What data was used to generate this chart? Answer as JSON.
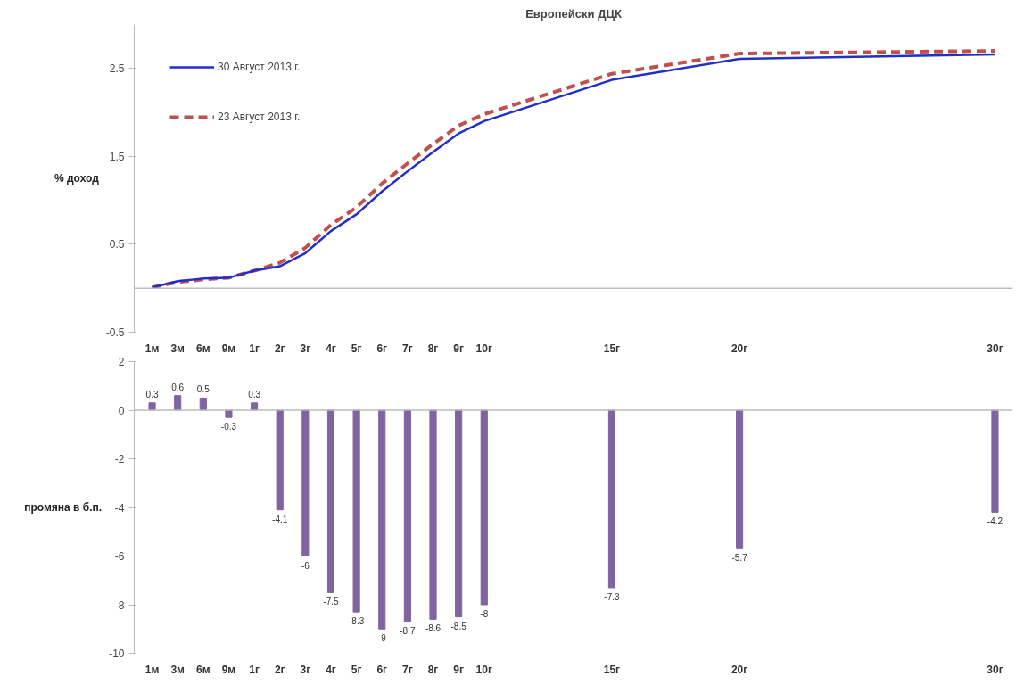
{
  "chart_data": [
    {
      "type": "line",
      "title": "Европейски ДЦК",
      "ylabel": "% доход",
      "categories": [
        "1м",
        "3м",
        "6м",
        "9м",
        "1г",
        "2г",
        "3г",
        "4г",
        "5г",
        "6г",
        "7г",
        "8г",
        "9г",
        "10г",
        null,
        null,
        null,
        null,
        "15г",
        null,
        null,
        null,
        null,
        "20г",
        null,
        null,
        null,
        null,
        null,
        null,
        null,
        null,
        null,
        "30г"
      ],
      "series": [
        {
          "name": "30 Август 2013 г.",
          "color": "#1f2fc8",
          "line_style": "solid",
          "values": [
            0.01,
            0.08,
            0.11,
            0.12,
            0.2,
            0.25,
            0.4,
            0.65,
            0.84,
            1.1,
            1.33,
            1.55,
            1.76,
            1.9,
            null,
            null,
            null,
            null,
            2.37,
            null,
            null,
            null,
            null,
            2.61,
            null,
            null,
            null,
            null,
            null,
            null,
            null,
            null,
            null,
            2.66
          ]
        },
        {
          "name": "23 Август 2013 г.",
          "color": "#c0504d",
          "line_style": "dashed",
          "values": [
            0.01,
            0.07,
            0.1,
            0.12,
            0.2,
            0.29,
            0.46,
            0.72,
            0.92,
            1.19,
            1.42,
            1.64,
            1.85,
            1.98,
            null,
            null,
            null,
            null,
            2.44,
            null,
            null,
            null,
            null,
            2.67,
            null,
            null,
            null,
            null,
            null,
            null,
            null,
            null,
            null,
            2.7
          ]
        }
      ],
      "ylim": [
        -0.5,
        3.0
      ],
      "yticks": [
        -0.5,
        0.5,
        1.5,
        2.5
      ],
      "legend": "top left",
      "ref_lines": [
        {
          "axis": "y",
          "value": 0
        }
      ]
    },
    {
      "type": "bar",
      "ylabel": "промяна в б.п.",
      "categories": [
        "1м",
        "3м",
        "6м",
        "9м",
        "1г",
        "2г",
        "3г",
        "4г",
        "5г",
        "6г",
        "7г",
        "8г",
        "9г",
        "10г",
        null,
        null,
        null,
        null,
        "15г",
        null,
        null,
        null,
        null,
        "20г",
        null,
        null,
        null,
        null,
        null,
        null,
        null,
        null,
        null,
        "30г"
      ],
      "values": [
        0.3,
        0.6,
        0.5,
        -0.3,
        0.3,
        -4.1,
        -6,
        -7.5,
        -8.3,
        -9,
        -8.7,
        -8.6,
        -8.5,
        -8,
        null,
        null,
        null,
        null,
        -7.3,
        null,
        null,
        null,
        null,
        -5.7,
        null,
        null,
        null,
        null,
        null,
        null,
        null,
        null,
        null,
        -4.2
      ],
      "color": "#8064a2",
      "ylim": [
        -10,
        2
      ],
      "yticks": [
        -10,
        -8,
        -6,
        -4,
        -2,
        0,
        2
      ],
      "data_labels": true,
      "ref_lines": [
        {
          "axis": "y",
          "value": 0
        }
      ]
    }
  ]
}
